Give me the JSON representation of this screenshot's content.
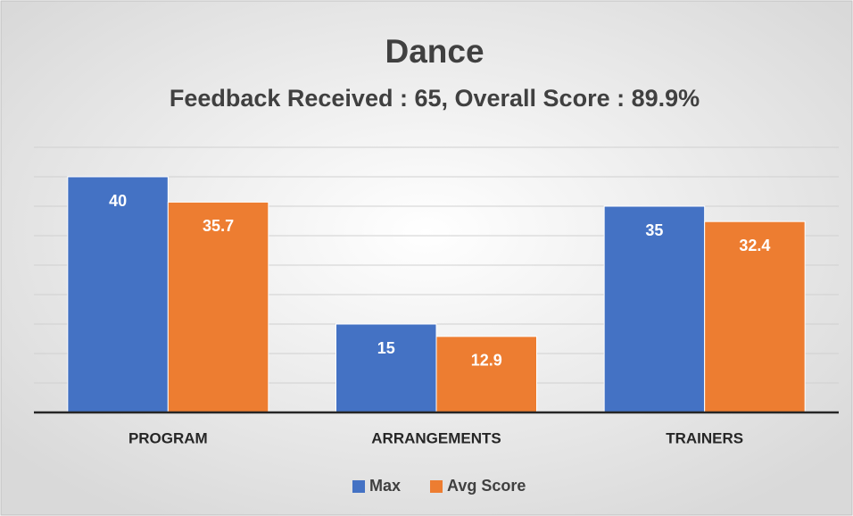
{
  "chart_data": {
    "type": "bar",
    "title": "Dance",
    "subtitle": "Feedback Received : 65, Overall Score : 89.9%",
    "categories": [
      "PROGRAM",
      "ARRANGEMENTS",
      "TRAINERS"
    ],
    "series": [
      {
        "name": "Max",
        "color": "#4472c4",
        "values": [
          40,
          15,
          35
        ]
      },
      {
        "name": "Avg Score",
        "color": "#ed7d31",
        "values": [
          35.7,
          12.9,
          32.4
        ]
      }
    ],
    "ylim": [
      0,
      45
    ],
    "yticks": [
      0,
      5,
      10,
      15,
      20,
      25,
      30,
      35,
      40,
      45
    ],
    "grid": true,
    "legend": "bottom"
  }
}
